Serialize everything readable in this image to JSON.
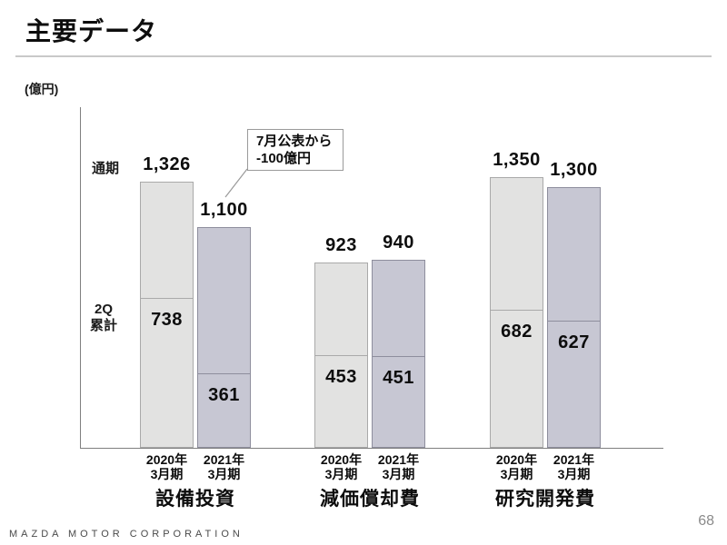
{
  "slide": {
    "title": "主要データ",
    "unit_label": "(億円)",
    "footer_logo": "MAZDA MOTOR CORPORATION",
    "page_number": "68"
  },
  "annotations": {
    "full_year_label": "通期",
    "first_half_label_lines": [
      "2Q",
      "累計"
    ],
    "callout_lines": [
      "7月公表から",
      "-100億円"
    ]
  },
  "colors": {
    "series_2020_fill": "#e2e2e1",
    "series_2020_border": "#a9a9a9",
    "series_2021_fill": "#c7c7d3",
    "series_2021_border": "#8e8e9d",
    "axis": "#7f7f7f",
    "callout_border": "#9a9a9a"
  },
  "chart_data": {
    "type": "bar",
    "title": "主要データ",
    "ylabel": "(億円)",
    "unit": "億円",
    "ylim": [
      0,
      1700
    ],
    "grid": false,
    "series_names": [
      "通期",
      "2Q累計"
    ],
    "note": "各バーは通期値の高さ、内部仕切り線が2Q累計値",
    "groups": [
      {
        "label": "設備投資",
        "bars": [
          {
            "series": "2020",
            "period_lines": [
              "2020年",
              "3月期"
            ],
            "full_year": 1326,
            "first_half": 738
          },
          {
            "series": "2021",
            "period_lines": [
              "2021年",
              "3月期"
            ],
            "full_year": 1100,
            "first_half": 361,
            "callout": true
          }
        ]
      },
      {
        "label": "減価償却費",
        "bars": [
          {
            "series": "2020",
            "period_lines": [
              "2020年",
              "3月期"
            ],
            "full_year": 923,
            "first_half": 453
          },
          {
            "series": "2021",
            "period_lines": [
              "2021年",
              "3月期"
            ],
            "full_year": 940,
            "first_half": 451
          }
        ]
      },
      {
        "label": "研究開発費",
        "bars": [
          {
            "series": "2020",
            "period_lines": [
              "2020年",
              "3月期"
            ],
            "full_year": 1350,
            "first_half": 682
          },
          {
            "series": "2021",
            "period_lines": [
              "2021年",
              "3月期"
            ],
            "full_year": 1300,
            "first_half": 627
          }
        ]
      }
    ]
  }
}
